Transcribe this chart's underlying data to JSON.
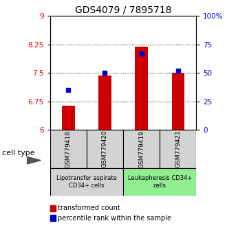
{
  "title": "GDS4079 / 7895718",
  "samples": [
    "GSM779418",
    "GSM779420",
    "GSM779419",
    "GSM779421"
  ],
  "bar_values": [
    6.63,
    7.43,
    8.18,
    7.5
  ],
  "percentile_values": [
    35,
    50,
    67,
    52
  ],
  "ylim_left": [
    6,
    9
  ],
  "ylim_right": [
    0,
    100
  ],
  "yticks_left": [
    6,
    6.75,
    7.5,
    8.25,
    9
  ],
  "yticks_right": [
    0,
    25,
    50,
    75,
    100
  ],
  "ytick_labels_left": [
    "6",
    "6.75",
    "7.5",
    "8.25",
    "9"
  ],
  "ytick_labels_right": [
    "0",
    "25",
    "50",
    "75",
    "100%"
  ],
  "bar_color": "#cc0000",
  "marker_color": "#0000cc",
  "bar_bottom": 6,
  "bar_width": 0.35,
  "groups": [
    {
      "label": "Lipotransfer aspirate\nCD34+ cells",
      "samples": [
        0,
        1
      ],
      "color": "#d3d3d3"
    },
    {
      "label": "Leukapheresis CD34+\ncells",
      "samples": [
        2,
        3
      ],
      "color": "#90ee90"
    }
  ],
  "cell_type_label": "cell type",
  "legend_bar_label": "transformed count",
  "legend_marker_label": "percentile rank within the sample",
  "title_fontsize": 10,
  "tick_fontsize": 7.5,
  "sample_fontsize": 6.5,
  "group_fontsize": 6,
  "legend_fontsize": 7
}
